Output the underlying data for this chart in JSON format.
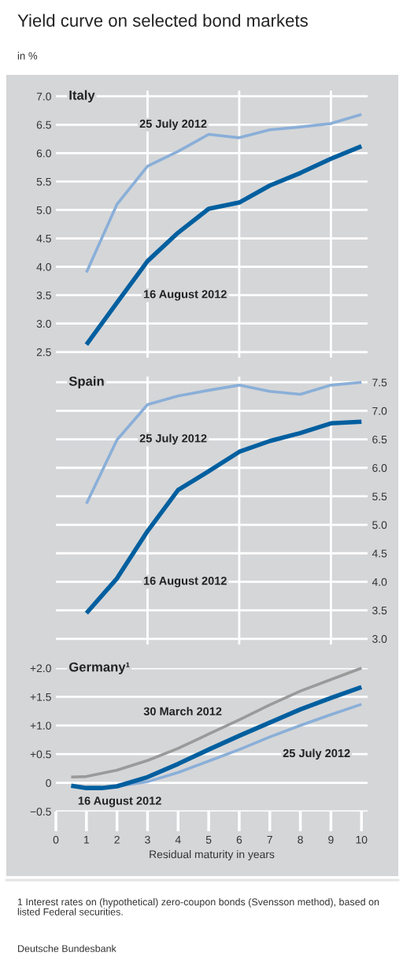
{
  "chart_data": [
    {
      "type": "line",
      "title": "Yield curve on selected bond markets",
      "subtitle": "in %",
      "x": [
        1,
        2,
        3,
        4,
        5,
        6,
        7,
        8,
        9,
        10
      ],
      "series": [
        {
          "name": "25 July 2012",
          "color": "#8aafd8",
          "values": [
            3.9,
            5.1,
            5.77,
            6.03,
            6.33,
            6.27,
            6.41,
            6.46,
            6.52,
            6.68
          ]
        },
        {
          "name": "16 August 2012",
          "color": "#005f9f",
          "values": [
            2.63,
            3.37,
            4.1,
            4.6,
            5.02,
            5.13,
            5.43,
            5.65,
            5.9,
            6.12
          ]
        }
      ],
      "xlim": [
        0,
        10.2
      ],
      "xticks": [
        {
          "value": 3,
          "label": null
        },
        {
          "value": 6,
          "label": null
        },
        {
          "value": 9,
          "label": null
        }
      ],
      "ylim": [
        2.4,
        7.1
      ],
      "yticks": [
        {
          "value": 2.5,
          "label": "2.5"
        },
        {
          "value": 3.0,
          "label": "3.0"
        },
        {
          "value": 3.5,
          "label": "3.5"
        },
        {
          "value": 4.0,
          "label": "4.0"
        },
        {
          "value": 4.5,
          "label": "4.5"
        },
        {
          "value": 5.0,
          "label": "5.0"
        },
        {
          "value": 5.5,
          "label": "5.5"
        },
        {
          "value": 6.0,
          "label": "6.0"
        },
        {
          "value": 6.5,
          "label": "6.5"
        },
        {
          "value": 7.0,
          "label": "7.0"
        }
      ],
      "tick_labels": "y",
      "grid": true,
      "annotations": [
        "Italy"
      ]
    },
    {
      "type": "line",
      "x": [
        1,
        2,
        3,
        4,
        5,
        6,
        7,
        8,
        9,
        10
      ],
      "series": [
        {
          "name": "25 July 2012",
          "color": "#8aafd8",
          "axis": "y2",
          "values": [
            5.37,
            6.49,
            7.11,
            7.26,
            7.36,
            7.45,
            7.34,
            7.29,
            7.45,
            7.5
          ]
        },
        {
          "name": "16 August 2012",
          "color": "#005f9f",
          "axis": "y2",
          "values": [
            3.45,
            4.06,
            4.89,
            5.61,
            5.94,
            6.28,
            6.47,
            6.61,
            6.78,
            6.81
          ]
        }
      ],
      "xlim": [
        0,
        10.2
      ],
      "xticks": [
        {
          "value": 3,
          "label": null
        },
        {
          "value": 6,
          "label": null
        },
        {
          "value": 9,
          "label": null
        }
      ],
      "y2lim": [
        2.9,
        7.6
      ],
      "y2ticks": [
        {
          "value": 3.0,
          "label": "3.0"
        },
        {
          "value": 3.5,
          "label": "3.5"
        },
        {
          "value": 4.0,
          "label": "4.0"
        },
        {
          "value": 4.5,
          "label": "4.5"
        },
        {
          "value": 5.0,
          "label": "5.0"
        },
        {
          "value": 5.5,
          "label": "5.5"
        },
        {
          "value": 6.0,
          "label": "6.0"
        },
        {
          "value": 6.5,
          "label": "6.5"
        },
        {
          "value": 7.0,
          "label": "7.0"
        },
        {
          "value": 7.5,
          "label": "7.5"
        }
      ],
      "tick_labels": "y",
      "grid": true,
      "annotations": [
        "Spain"
      ]
    },
    {
      "type": "line",
      "xlabel": "Residual maturity in years",
      "series": [
        {
          "name": "30 March 2012",
          "color": "#9a9a9a",
          "x": [
            0.5,
            1,
            2,
            3,
            4,
            5,
            6,
            7,
            8,
            9,
            10
          ],
          "values": [
            0.1,
            0.11,
            0.22,
            0.39,
            0.6,
            0.85,
            1.1,
            1.36,
            1.6,
            1.8,
            2.0
          ]
        },
        {
          "name": "25 July 2012",
          "color": "#8aafd8",
          "x": [
            2,
            3,
            4,
            5,
            6,
            7,
            8,
            9,
            10
          ],
          "values": [
            -0.06,
            0.02,
            0.18,
            0.38,
            0.58,
            0.8,
            1.0,
            1.19,
            1.37
          ]
        },
        {
          "name": "16 August 2012",
          "color": "#005f9f",
          "x": [
            0.5,
            1,
            1.5,
            2,
            3,
            4,
            5,
            6,
            7,
            8,
            9,
            10
          ],
          "values": [
            -0.05,
            -0.09,
            -0.09,
            -0.06,
            0.1,
            0.33,
            0.58,
            0.82,
            1.05,
            1.28,
            1.48,
            1.67
          ]
        }
      ],
      "xlim": [
        0,
        10.2
      ],
      "xticks": [
        0,
        1,
        2,
        3,
        4,
        5,
        6,
        7,
        8,
        9,
        10
      ],
      "ylim": [
        -0.5,
        2.0
      ],
      "yticks": [
        {
          "value": -0.5,
          "label": "−0.5"
        },
        {
          "value": 0,
          "label": "0"
        },
        {
          "value": 0.5,
          "label": "+0.5"
        },
        {
          "value": 1.0,
          "label": "+1.0"
        },
        {
          "value": 1.5,
          "label": "+1.5"
        },
        {
          "value": 2.0,
          "label": "+2.0"
        }
      ],
      "grid": "y",
      "annotations": [
        "Germany¹",
        "1 Interest rates on (hypothetical) zero-coupon bonds (Svensson method), based on listed Federal securities.",
        "Deutsche Bundesbank"
      ]
    }
  ]
}
